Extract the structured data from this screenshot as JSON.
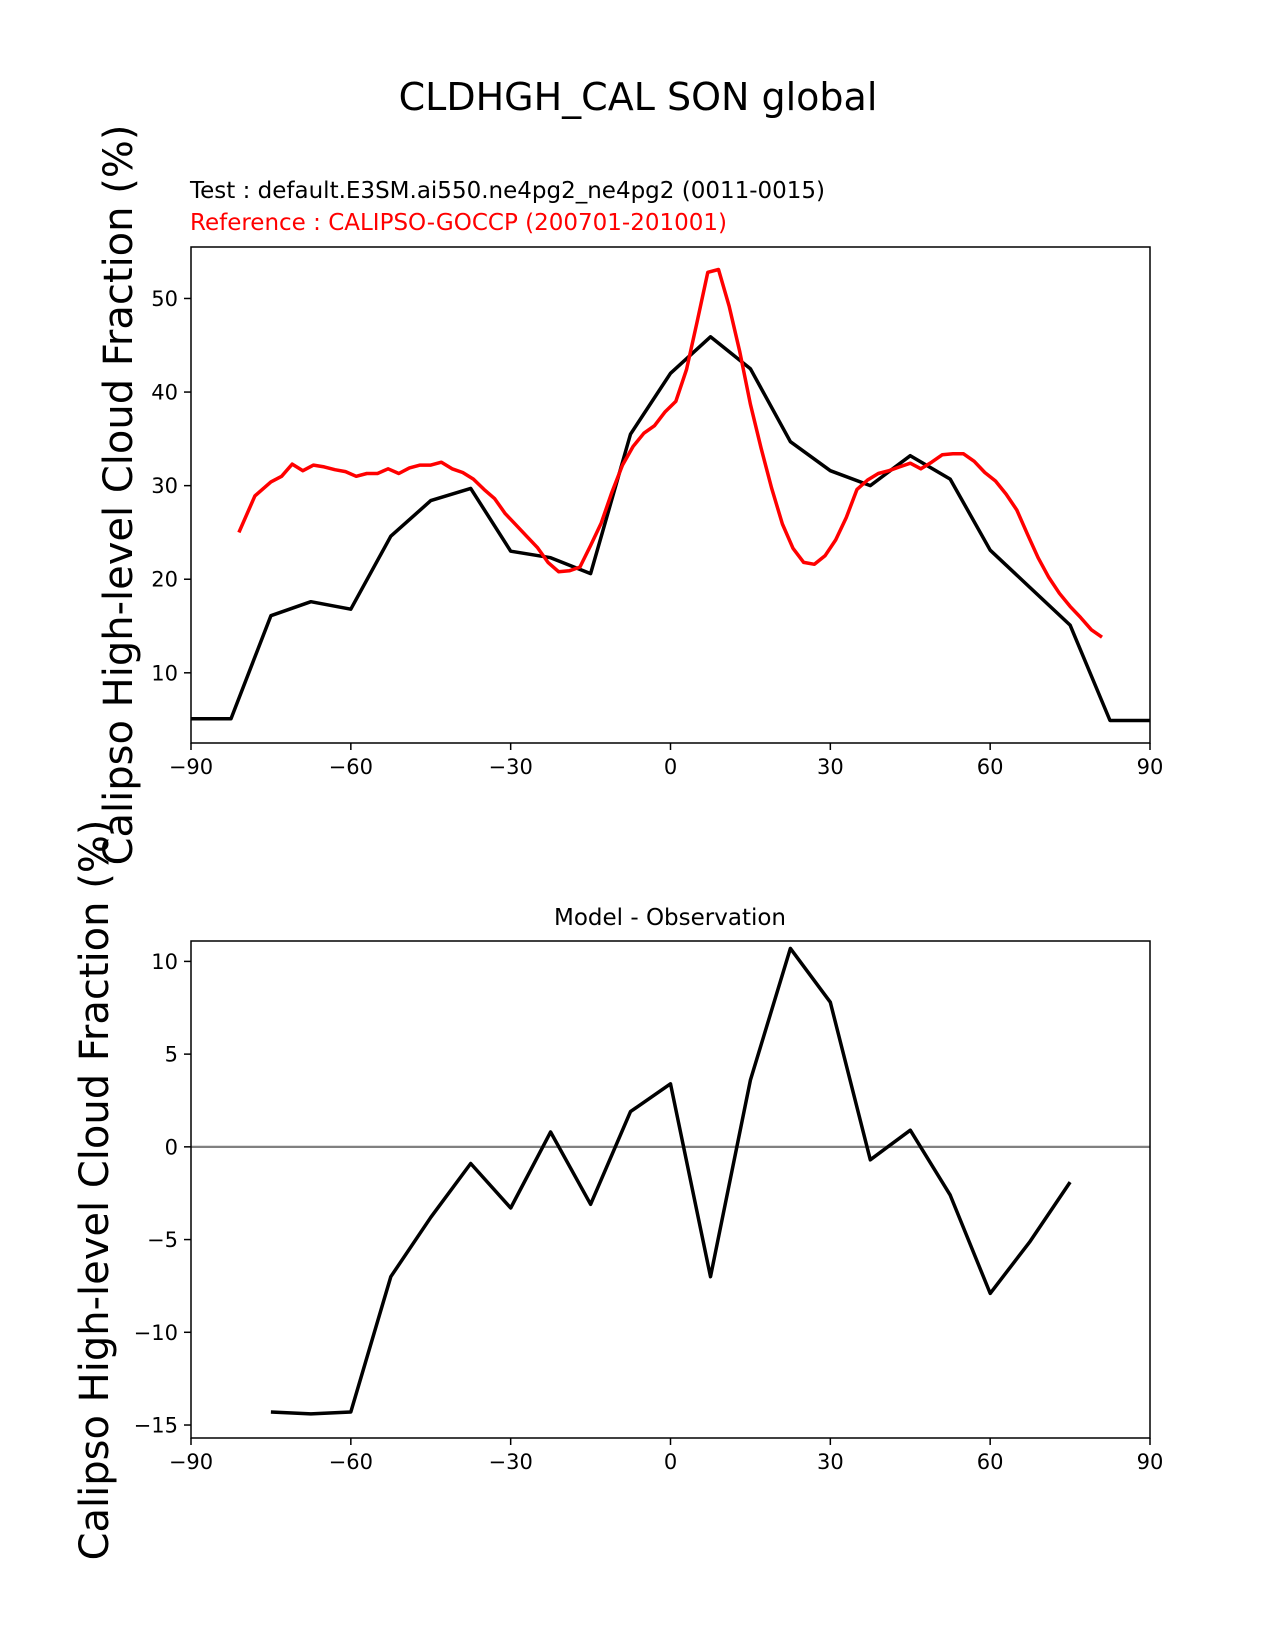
{
  "figure": {
    "suptitle": "CLDHGH_CAL SON global",
    "test_label": "Test : default.E3SM.ai550.ne4pg2_ne4pg2 (0011-0015)",
    "reference_label": "Reference : CALIPSO-GOCCP (200701-201001)",
    "diff_title": "Model - Observation",
    "ylabel": "Calipso High-level Cloud Fraction (%)"
  },
  "colors": {
    "test": "#000000",
    "reference": "#ff0000",
    "zero_line": "#808080"
  },
  "chart_data": [
    {
      "type": "line",
      "title": "",
      "ylabel": "Calipso High-level Cloud Fraction (%)",
      "xlim": [
        -90,
        90
      ],
      "ylim": [
        2.5,
        55.5
      ],
      "xticks": [
        -90,
        -60,
        -30,
        0,
        30,
        60,
        90
      ],
      "xtick_labels": [
        "−90",
        "−60",
        "−30",
        "0",
        "30",
        "60",
        "90"
      ],
      "yticks": [
        10,
        20,
        30,
        40,
        50
      ],
      "ytick_labels": [
        "10",
        "20",
        "30",
        "40",
        "50"
      ],
      "grid": false,
      "series": [
        {
          "name": "Test : default.E3SM.ai550.ne4pg2_ne4pg2 (0011-0015)",
          "color": "#000000",
          "x": [
            -90,
            -82.5,
            -75,
            -67.5,
            -60,
            -52.5,
            -45,
            -37.5,
            -30,
            -22.5,
            -15,
            -7.5,
            0,
            7.5,
            15,
            22.5,
            30,
            37.5,
            45,
            52.5,
            60,
            67.5,
            75,
            82.5,
            90
          ],
          "y": [
            5.1,
            5.1,
            16.1,
            17.6,
            16.8,
            24.6,
            28.4,
            29.7,
            23.0,
            22.3,
            20.6,
            35.5,
            42.0,
            45.9,
            42.5,
            34.7,
            31.6,
            30.0,
            33.2,
            30.7,
            23.1,
            19.1,
            15.1,
            4.9,
            4.9
          ]
        },
        {
          "name": "Reference : CALIPSO-GOCCP (200701-201001)",
          "color": "#ff0000",
          "x": [
            -81,
            -78,
            -75,
            -73,
            -71,
            -69,
            -67,
            -65,
            -63,
            -61,
            -59,
            -57,
            -55,
            -53,
            -51,
            -49,
            -47,
            -45,
            -43,
            -41,
            -39,
            -37,
            -35,
            -33,
            -31,
            -29,
            -27,
            -25,
            -23,
            -21,
            -19,
            -17,
            -15,
            -13,
            -11,
            -9,
            -7,
            -5,
            -3,
            -1,
            1,
            3,
            5,
            7,
            9,
            11,
            13,
            15,
            17,
            19,
            21,
            23,
            25,
            27,
            29,
            31,
            33,
            35,
            37,
            39,
            41,
            43,
            45,
            47,
            49,
            51,
            53,
            55,
            57,
            59,
            61,
            63,
            65,
            67,
            69,
            71,
            73,
            75,
            77,
            79,
            81
          ],
          "y": [
            25.0,
            28.9,
            30.4,
            31.0,
            32.3,
            31.6,
            32.2,
            32.0,
            31.7,
            31.5,
            31.0,
            31.3,
            31.3,
            31.8,
            31.3,
            31.9,
            32.2,
            32.2,
            32.5,
            31.8,
            31.4,
            30.7,
            29.6,
            28.6,
            27.0,
            25.8,
            24.6,
            23.4,
            21.8,
            20.8,
            20.9,
            21.3,
            23.6,
            26.0,
            29.3,
            32.2,
            34.2,
            35.6,
            36.4,
            37.9,
            39.0,
            42.4,
            47.5,
            52.8,
            53.1,
            49.2,
            44.3,
            38.7,
            34.0,
            29.7,
            25.9,
            23.3,
            21.8,
            21.6,
            22.5,
            24.2,
            26.6,
            29.6,
            30.6,
            31.3,
            31.6,
            32.0,
            32.4,
            31.8,
            32.5,
            33.3,
            33.4,
            33.4,
            32.6,
            31.4,
            30.5,
            29.1,
            27.4,
            24.8,
            22.3,
            20.2,
            18.5,
            17.1,
            15.9,
            14.6,
            13.8
          ]
        }
      ]
    },
    {
      "type": "line",
      "title": "Model - Observation",
      "ylabel": "Calipso High-level Cloud Fraction (%)",
      "xlim": [
        -90,
        90
      ],
      "ylim": [
        -15.7,
        11.1
      ],
      "xticks": [
        -90,
        -60,
        -30,
        0,
        30,
        60,
        90
      ],
      "xtick_labels": [
        "−90",
        "−60",
        "−30",
        "0",
        "30",
        "60",
        "90"
      ],
      "yticks": [
        -15,
        -10,
        -5,
        0,
        5,
        10
      ],
      "ytick_labels": [
        "−15",
        "−10",
        "−5",
        "0",
        "5",
        "10"
      ],
      "grid": false,
      "reference_line_y": 0,
      "series": [
        {
          "color": "#000000",
          "x": [
            -75,
            -67.5,
            -60,
            -52.5,
            -45,
            -37.5,
            -30,
            -22.5,
            -15,
            -7.5,
            0,
            7.5,
            15,
            22.5,
            30,
            37.5,
            45,
            52.5,
            60,
            67.5,
            75
          ],
          "y": [
            -14.3,
            -14.4,
            -14.3,
            -7.0,
            -3.8,
            -0.9,
            -3.3,
            0.8,
            -3.1,
            1.9,
            3.4,
            -7.0,
            3.6,
            10.7,
            7.8,
            -0.7,
            0.9,
            -2.6,
            -7.9,
            -5.1,
            -1.9
          ]
        }
      ]
    }
  ]
}
